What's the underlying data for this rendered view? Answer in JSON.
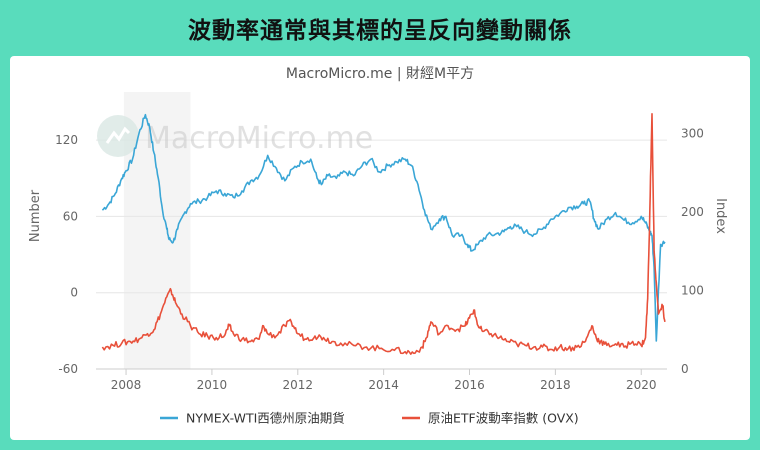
{
  "banner": {
    "title": "波動率通常與其標的呈反向變動關係"
  },
  "chart_data": {
    "type": "line",
    "subtitle": "MacroMicro.me | 財經M平方",
    "watermark": "MacroMicro.me",
    "ylabel_left": "Number",
    "ylabel_right": "Index",
    "ylim_left": [
      -60,
      150
    ],
    "ylim_right": [
      0,
      340
    ],
    "yticks_left": [
      "120",
      "60",
      "0",
      "-60"
    ],
    "yticks_left_values": [
      120,
      60,
      0,
      -60
    ],
    "yticks_right": [
      "300",
      "200",
      "100",
      "0"
    ],
    "yticks_right_values": [
      300,
      200,
      100,
      0
    ],
    "xlim": [
      2007.3,
      2020.6
    ],
    "xticks": [
      "2008",
      "2010",
      "2012",
      "2014",
      "2016",
      "2018",
      "2020"
    ],
    "xticks_values": [
      2008,
      2010,
      2012,
      2014,
      2016,
      2018,
      2020
    ],
    "recession_shading": [
      2007.95,
      2009.5
    ],
    "legend_position": "bottom",
    "series": [
      {
        "name": "NYMEX-WTI西德州原油期貨",
        "axis": "left",
        "color": "#3aa6d6",
        "x": [
          2007.45,
          2007.6,
          2007.75,
          2007.9,
          2008.0,
          2008.15,
          2008.3,
          2008.45,
          2008.55,
          2008.65,
          2008.75,
          2008.85,
          2008.95,
          2009.0,
          2009.1,
          2009.2,
          2009.35,
          2009.5,
          2009.7,
          2009.9,
          2010.1,
          2010.3,
          2010.5,
          2010.7,
          2010.9,
          2011.1,
          2011.3,
          2011.5,
          2011.7,
          2011.9,
          2012.1,
          2012.3,
          2012.45,
          2012.55,
          2012.7,
          2012.9,
          2013.1,
          2013.3,
          2013.5,
          2013.7,
          2013.9,
          2014.1,
          2014.3,
          2014.5,
          2014.65,
          2014.8,
          2014.95,
          2015.1,
          2015.3,
          2015.45,
          2015.6,
          2015.8,
          2015.95,
          2016.05,
          2016.2,
          2016.4,
          2016.6,
          2016.8,
          2016.95,
          2017.1,
          2017.3,
          2017.5,
          2017.7,
          2017.9,
          2018.1,
          2018.3,
          2018.5,
          2018.65,
          2018.8,
          2018.9,
          2019.0,
          2019.2,
          2019.4,
          2019.6,
          2019.8,
          2020.0,
          2020.1,
          2020.2,
          2020.25,
          2020.3,
          2020.35,
          2020.45,
          2020.55
        ],
        "values": [
          65,
          70,
          78,
          90,
          96,
          105,
          125,
          140,
          130,
          110,
          90,
          65,
          50,
          42,
          40,
          50,
          62,
          70,
          72,
          75,
          80,
          78,
          75,
          80,
          88,
          92,
          108,
          98,
          88,
          98,
          103,
          105,
          90,
          85,
          92,
          90,
          95,
          92,
          100,
          105,
          95,
          100,
          103,
          105,
          100,
          85,
          65,
          50,
          58,
          60,
          45,
          45,
          38,
          33,
          38,
          45,
          46,
          48,
          52,
          52,
          48,
          46,
          50,
          58,
          62,
          67,
          68,
          70,
          72,
          58,
          50,
          58,
          63,
          57,
          55,
          60,
          55,
          48,
          45,
          20,
          -38,
          38,
          40
        ]
      },
      {
        "name": "原油ETF波動率指數 (OVX)",
        "axis": "right",
        "color": "#e8503a",
        "x": [
          2007.45,
          2007.7,
          2007.9,
          2008.1,
          2008.3,
          2008.5,
          2008.65,
          2008.8,
          2008.95,
          2009.05,
          2009.15,
          2009.3,
          2009.5,
          2009.7,
          2009.9,
          2010.1,
          2010.3,
          2010.4,
          2010.5,
          2010.7,
          2010.9,
          2011.1,
          2011.2,
          2011.3,
          2011.5,
          2011.7,
          2011.85,
          2012.0,
          2012.2,
          2012.4,
          2012.6,
          2012.8,
          2013.0,
          2013.3,
          2013.6,
          2013.9,
          2014.2,
          2014.5,
          2014.7,
          2014.9,
          2015.0,
          2015.1,
          2015.3,
          2015.5,
          2015.7,
          2015.9,
          2016.0,
          2016.1,
          2016.2,
          2016.3,
          2016.5,
          2016.7,
          2016.9,
          2017.1,
          2017.3,
          2017.5,
          2017.7,
          2017.9,
          2018.1,
          2018.3,
          2018.5,
          2018.7,
          2018.85,
          2018.95,
          2019.05,
          2019.2,
          2019.4,
          2019.6,
          2019.8,
          2020.0,
          2020.1,
          2020.15,
          2020.2,
          2020.25,
          2020.3,
          2020.35,
          2020.4,
          2020.5,
          2020.55
        ],
        "values": [
          28,
          30,
          33,
          35,
          38,
          45,
          50,
          70,
          92,
          100,
          85,
          70,
          55,
          45,
          42,
          40,
          43,
          55,
          45,
          38,
          35,
          38,
          55,
          45,
          42,
          55,
          60,
          45,
          38,
          42,
          40,
          35,
          33,
          30,
          28,
          26,
          25,
          22,
          20,
          28,
          40,
          60,
          45,
          55,
          50,
          55,
          65,
          75,
          55,
          48,
          45,
          40,
          35,
          32,
          30,
          28,
          28,
          25,
          28,
          26,
          28,
          35,
          55,
          40,
          35,
          30,
          32,
          28,
          35,
          30,
          40,
          90,
          200,
          325,
          150,
          110,
          70,
          80,
          60
        ]
      }
    ]
  }
}
